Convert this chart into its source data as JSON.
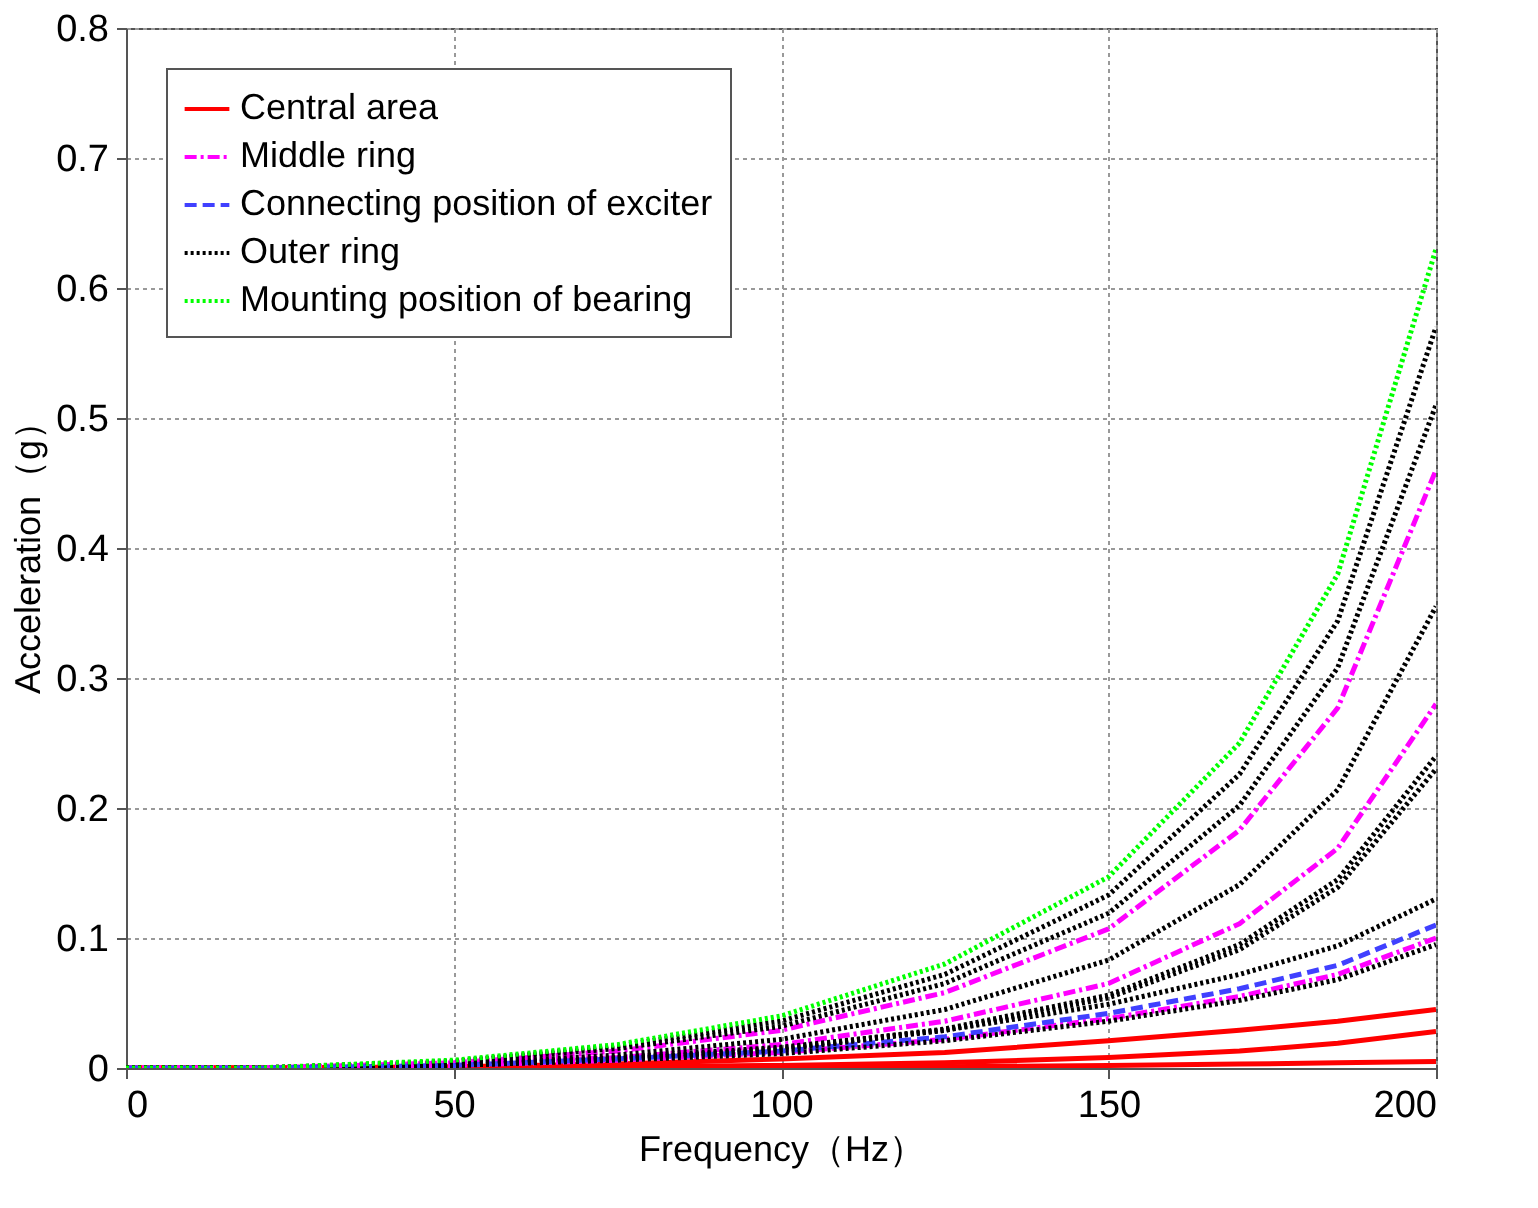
{
  "chart_data": {
    "type": "line",
    "xlabel": "Frequency（Hz）",
    "ylabel": "Acceleration（g）",
    "x": [
      0,
      20,
      50,
      75,
      100,
      125,
      150,
      170,
      185,
      200
    ],
    "xlim": [
      0,
      200
    ],
    "xticks": [
      0,
      50,
      100,
      150,
      200
    ],
    "ylim": [
      0,
      0.8
    ],
    "yticks": [
      0,
      0.1,
      0.2,
      0.3,
      0.4,
      0.5,
      0.6,
      0.7,
      0.8
    ],
    "grid": true,
    "legend": "top left",
    "series": [
      {
        "name": "Central area",
        "color": "#ff0000",
        "line_style": "solid",
        "values": [
          0,
          0,
          0.001,
          0.003,
          0.007,
          0.012,
          0.021,
          0.029,
          0.036,
          0.045
        ]
      },
      {
        "color": "#ff0000",
        "line_style": "solid",
        "values": [
          0,
          0,
          0,
          0.001,
          0.002,
          0.004,
          0.008,
          0.013,
          0.019,
          0.028
        ]
      },
      {
        "color": "#ff0000",
        "line_style": "solid",
        "values": [
          0,
          0,
          0,
          0,
          0,
          0.001,
          0.002,
          0.003,
          0.004,
          0.005
        ]
      },
      {
        "name": "Middle ring",
        "color": "#ff00ff",
        "line_style": "dashdot",
        "values": [
          0,
          0,
          0.004,
          0.013,
          0.029,
          0.058,
          0.107,
          0.183,
          0.277,
          0.46
        ]
      },
      {
        "color": "#ff00ff",
        "line_style": "dashdot",
        "values": [
          0,
          0,
          0.003,
          0.008,
          0.018,
          0.036,
          0.065,
          0.111,
          0.169,
          0.28
        ]
      },
      {
        "color": "#ff00ff",
        "line_style": "dashdot",
        "values": [
          0,
          0,
          0.002,
          0.006,
          0.012,
          0.022,
          0.038,
          0.055,
          0.072,
          0.1
        ]
      },
      {
        "name": "Connecting position of exciter",
        "color": "#4040ff",
        "line_style": "dashed",
        "values": [
          0,
          0,
          0.002,
          0.007,
          0.013,
          0.024,
          0.042,
          0.061,
          0.079,
          0.11
        ]
      },
      {
        "name": "Outer ring",
        "color": "#000000",
        "line_style": "dotted",
        "values": [
          0,
          0,
          0.005,
          0.017,
          0.036,
          0.072,
          0.133,
          0.226,
          0.344,
          0.57
        ]
      },
      {
        "color": "#000000",
        "line_style": "dotted",
        "values": [
          0,
          0,
          0.005,
          0.015,
          0.032,
          0.065,
          0.119,
          0.202,
          0.308,
          0.51
        ]
      },
      {
        "color": "#000000",
        "line_style": "dotted",
        "values": [
          0,
          0,
          0.003,
          0.01,
          0.022,
          0.045,
          0.083,
          0.141,
          0.214,
          0.355
        ]
      },
      {
        "color": "#000000",
        "line_style": "dotted",
        "values": [
          0,
          0,
          0.002,
          0.007,
          0.015,
          0.03,
          0.056,
          0.095,
          0.145,
          0.24
        ]
      },
      {
        "color": "#000000",
        "line_style": "dotted",
        "values": [
          0,
          0,
          0.002,
          0.007,
          0.014,
          0.029,
          0.054,
          0.091,
          0.139,
          0.23
        ]
      },
      {
        "color": "#000000",
        "line_style": "dotted",
        "values": [
          0,
          0,
          0.003,
          0.008,
          0.016,
          0.029,
          0.049,
          0.072,
          0.094,
          0.13
        ]
      },
      {
        "color": "#000000",
        "line_style": "dotted",
        "values": [
          0,
          0,
          0.002,
          0.006,
          0.011,
          0.021,
          0.036,
          0.052,
          0.068,
          0.095
        ]
      },
      {
        "name": "Mounting position of bearing",
        "color": "#00ff00",
        "line_style": "dotted",
        "values": [
          0,
          0,
          0.006,
          0.018,
          0.04,
          0.08,
          0.147,
          0.25,
          0.38,
          0.63
        ]
      }
    ]
  }
}
